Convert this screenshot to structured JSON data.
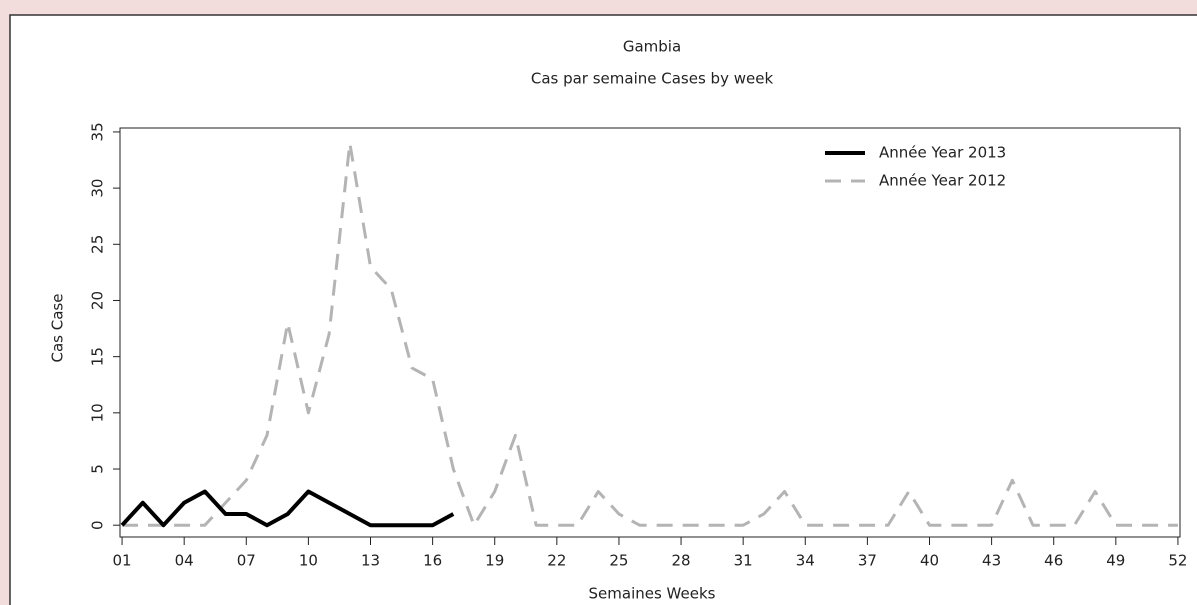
{
  "chart_data": {
    "type": "line",
    "title": "Gambia",
    "subtitle": "Cas par semaine Cases by week",
    "x_label": "Semaines Weeks",
    "y_label": "Cas Case",
    "x": [
      1,
      2,
      3,
      4,
      5,
      6,
      7,
      8,
      9,
      10,
      11,
      12,
      13,
      14,
      15,
      16,
      17,
      18,
      19,
      20,
      21,
      22,
      23,
      24,
      25,
      26,
      27,
      28,
      29,
      30,
      31,
      32,
      33,
      34,
      35,
      36,
      37,
      38,
      39,
      40,
      41,
      42,
      43,
      44,
      45,
      46,
      47,
      48,
      49,
      50,
      51,
      52
    ],
    "series": [
      {
        "name": "Année Year 2013",
        "color": "#000000",
        "dashed": false,
        "values": [
          0,
          2,
          0,
          2,
          3,
          1,
          1,
          0,
          1,
          3,
          2,
          1,
          0,
          0,
          0,
          0,
          1,
          null,
          null,
          null,
          null,
          null,
          null,
          null,
          null,
          null,
          null,
          null,
          null,
          null,
          null,
          null,
          null,
          null,
          null,
          null,
          null,
          null,
          null,
          null,
          null,
          null,
          null,
          null,
          null,
          null,
          null,
          null,
          null,
          null,
          null,
          null
        ]
      },
      {
        "name": "Année Year 2012",
        "color": "#b4b4b4",
        "dashed": true,
        "values": [
          0,
          0,
          0,
          0,
          0,
          2,
          4,
          8,
          18,
          10,
          17,
          34,
          23,
          21,
          14,
          13,
          5,
          0,
          3,
          8,
          0,
          0,
          0,
          3,
          1,
          0,
          0,
          0,
          0,
          0,
          0,
          1,
          3,
          0,
          0,
          0,
          0,
          0,
          3,
          0,
          0,
          0,
          0,
          4,
          0,
          0,
          0,
          3,
          0,
          0,
          0,
          0
        ]
      }
    ],
    "xlim": [
      0.9,
      52.1
    ],
    "ylim": [
      -1.05,
      35.35
    ],
    "xticks": [
      {
        "value": 1,
        "label": "01"
      },
      {
        "value": 4,
        "label": "04"
      },
      {
        "value": 7,
        "label": "07"
      },
      10,
      13,
      16,
      19,
      22,
      25,
      28,
      31,
      34,
      37,
      40,
      43,
      46,
      49,
      52
    ],
    "yticks": [
      0,
      5,
      10,
      15,
      20,
      25,
      30,
      35
    ],
    "legend": "top-right"
  }
}
